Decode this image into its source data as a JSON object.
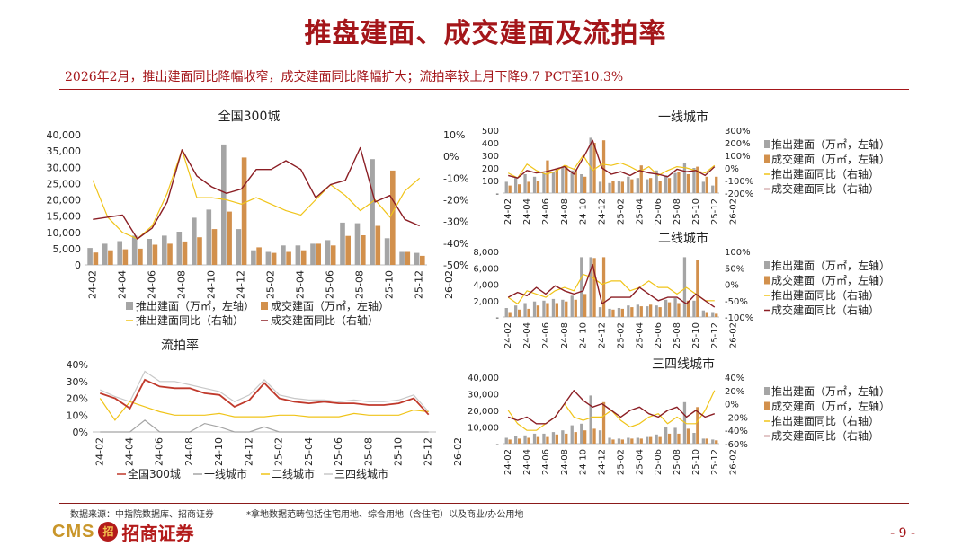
{
  "page": {
    "title": "推盘建面、成交建面及流拍率",
    "subtitle": "2026年2月，推出建面同比降幅收窄，成交建面同比降幅扩大；流拍率较上月下降9.7 PCT至10.3%",
    "footnote_source": "数据来源：中指院数据库、招商证券",
    "footnote_note": "*拿地数据范畴包括住宅用地、综合用地（含住宅）以及商业/办公用地",
    "logo_text": "CMS",
    "logo_badge": "招",
    "logo_cn": "招商证券",
    "page_number": "- 9 -"
  },
  "colors": {
    "brand_red": "#a4161a",
    "bar_supply": "#a5a5a5",
    "bar_deal": "#d2904c",
    "line_supply": "#f0c419",
    "line_deal": "#8b1e24",
    "rate_national": "#c0392b",
    "rate_tier1": "#a5a5a5",
    "rate_tier2": "#f0c419",
    "rate_tier3": "#c8c8c8"
  },
  "chart_data": [
    {
      "type": "bar+line",
      "title": "全国300城",
      "x_ticks": [
        "24-02",
        "24-04",
        "24-06",
        "24-08",
        "24-10",
        "24-12",
        "25-02",
        "25-04",
        "25-06",
        "25-08",
        "25-10",
        "25-12",
        "26-02"
      ],
      "left_axis_ticks": [
        "40,000",
        "35,000",
        "30,000",
        "25,000",
        "20,000",
        "15,000",
        "10,000",
        "5,000",
        "0"
      ],
      "right_axis_ticks": [
        "10%",
        "0%",
        "-10%",
        "-20%",
        "-30%",
        "-40%",
        "-50%"
      ],
      "ylim_left": [
        0,
        40000
      ],
      "ylim_right": [
        -50,
        10
      ],
      "legend_labels": [
        "推出建面（万㎡，左轴）",
        "成交建面（万㎡，左轴）",
        "推出建面同比（右轴）",
        "成交建面同比（右轴）"
      ],
      "series": [
        {
          "name": "推出建面（万㎡，左轴）",
          "kind": "bar",
          "axis": "left",
          "values": [
            5200,
            6500,
            7300,
            9000,
            8000,
            9000,
            10200,
            14500,
            17000,
            37000,
            11000,
            4500,
            4000,
            6000,
            6000,
            6500,
            7600,
            13000,
            12800,
            32500,
            8200,
            4000,
            3700
          ]
        },
        {
          "name": "成交建面（万㎡，左轴）",
          "kind": "bar",
          "axis": "left",
          "values": [
            3800,
            4500,
            4800,
            5000,
            6200,
            6500,
            7200,
            8500,
            11000,
            16400,
            33000,
            5400,
            3700,
            4000,
            4500,
            6500,
            6000,
            8900,
            9100,
            12000,
            29000,
            4000,
            2800
          ]
        },
        {
          "name": "推出建面同比（右轴）",
          "kind": "line",
          "axis": "right",
          "values": [
            -11,
            -28,
            -35,
            -38,
            -32,
            -17,
            3,
            -19,
            -19,
            -20,
            -22,
            -19,
            -22,
            -25,
            -27,
            -20,
            -13,
            -18,
            -25,
            -20,
            -28,
            -16,
            -10
          ]
        },
        {
          "name": "成交建面同比（右轴）",
          "kind": "line",
          "axis": "right",
          "values": [
            -29,
            -28,
            -27,
            -38,
            -33,
            -21,
            3,
            -9,
            -14,
            -17,
            -15,
            -6,
            -6,
            -2,
            -6,
            -19,
            -13,
            -11,
            4,
            -21,
            -18,
            -29,
            -32
          ]
        }
      ]
    },
    {
      "type": "bar+line",
      "title": "一线城市",
      "x_ticks": [
        "24-02",
        "24-04",
        "24-06",
        "24-08",
        "24-10",
        "24-12",
        "25-02",
        "25-04",
        "25-06",
        "25-08",
        "25-10",
        "25-12",
        "26-02"
      ],
      "left_axis_ticks": [
        "500",
        "400",
        "300",
        "200",
        "100",
        "-"
      ],
      "right_axis_ticks": [
        "300%",
        "200%",
        "100%",
        "0%",
        "-100%",
        "-200%"
      ],
      "ylim_left": [
        0,
        500
      ],
      "ylim_right": [
        -200,
        300
      ],
      "legend_labels": [
        "推出建面（万㎡，左轴）",
        "成交建面（万㎡，左轴）",
        "推出建面同比（右轴）",
        "成交建面同比（右轴）"
      ],
      "series": [
        {
          "name": "推出建面（万㎡，左轴）",
          "kind": "bar",
          "axis": "left",
          "values": [
            90,
            120,
            150,
            130,
            160,
            170,
            210,
            180,
            150,
            440,
            90,
            80,
            100,
            130,
            120,
            110,
            180,
            140,
            160,
            240,
            200,
            90,
            60
          ]
        },
        {
          "name": "成交建面（万㎡，左轴）",
          "kind": "bar",
          "axis": "left",
          "values": [
            60,
            70,
            90,
            100,
            260,
            190,
            220,
            190,
            130,
            400,
            420,
            100,
            90,
            110,
            220,
            120,
            100,
            120,
            170,
            150,
            210,
            130,
            130
          ]
        },
        {
          "name": "推出建面同比（右轴）",
          "kind": "line",
          "axis": "right",
          "values": [
            -40,
            -80,
            30,
            -20,
            -50,
            -30,
            20,
            -10,
            100,
            -20,
            30,
            20,
            40,
            10,
            -30,
            10,
            -60,
            -20,
            10,
            0,
            -20,
            -40,
            20
          ]
        },
        {
          "name": "成交建面同比（右轴）",
          "kind": "line",
          "axis": "right",
          "values": [
            -60,
            -80,
            -20,
            -40,
            -30,
            -10,
            10,
            -50,
            80,
            220,
            0,
            -50,
            -30,
            -60,
            -20,
            -40,
            -50,
            -70,
            -10,
            -30,
            -20,
            -60,
            10
          ]
        }
      ]
    },
    {
      "type": "bar+line",
      "title": "二线城市",
      "x_ticks": [
        "24-02",
        "24-04",
        "24-06",
        "24-08",
        "24-10",
        "24-12",
        "25-02",
        "25-04",
        "25-06",
        "25-08",
        "25-10",
        "25-12",
        "26-02"
      ],
      "left_axis_ticks": [
        "8,000",
        "6,000",
        "4,000",
        "2,000",
        "-"
      ],
      "right_axis_ticks": [
        "100%",
        "50%",
        "0%",
        "-50%",
        "-100%"
      ],
      "ylim_left": [
        0,
        8000
      ],
      "ylim_right": [
        -100,
        100
      ],
      "legend_labels": [
        "推出建面（万㎡，左轴）",
        "成交建面（万㎡，左轴）",
        "推出建面同比（右轴）",
        "成交建面同比（右轴）"
      ],
      "series": [
        {
          "name": "推出建面（万㎡，左轴）",
          "kind": "bar",
          "axis": "left",
          "values": [
            1100,
            1400,
            1700,
            1900,
            2000,
            2200,
            2100,
            2600,
            7300,
            7300,
            1200,
            1000,
            1100,
            1400,
            1500,
            1300,
            1400,
            2100,
            2300,
            7300,
            2000,
            800,
            600
          ]
        },
        {
          "name": "成交建面（万㎡，左轴）",
          "kind": "bar",
          "axis": "left",
          "values": [
            600,
            900,
            1000,
            1400,
            1700,
            1700,
            1900,
            2100,
            2800,
            7200,
            7300,
            900,
            1000,
            1200,
            1300,
            1500,
            1200,
            1800,
            1700,
            2000,
            6900,
            600,
            400
          ]
        },
        {
          "name": "推出建面同比（右轴）",
          "kind": "line",
          "axis": "right",
          "values": [
            -40,
            -60,
            -20,
            -30,
            -40,
            -20,
            -10,
            -20,
            30,
            20,
            0,
            10,
            10,
            -20,
            -10,
            10,
            -10,
            -10,
            -30,
            -10,
            -30,
            -50,
            -50
          ]
        },
        {
          "name": "成交建面同比（右轴）",
          "kind": "line",
          "axis": "right",
          "values": [
            -40,
            -25,
            -35,
            -10,
            -30,
            -5,
            -20,
            -30,
            -20,
            60,
            -60,
            -40,
            -40,
            -40,
            -10,
            -30,
            -50,
            -40,
            -40,
            -60,
            -30,
            -50,
            -70
          ]
        }
      ]
    },
    {
      "type": "line",
      "title": "流拍率",
      "x_ticks": [
        "24-02",
        "24-04",
        "24-06",
        "24-08",
        "24-10",
        "24-12",
        "25-02",
        "25-04",
        "25-06",
        "25-08",
        "25-10",
        "25-12",
        "26-02"
      ],
      "left_axis_ticks": [
        "40%",
        "30%",
        "20%",
        "10%",
        "0%"
      ],
      "ylim": [
        0,
        40
      ],
      "legend_labels": [
        "全国300城",
        "一线城市",
        "二线城市",
        "三四线城市"
      ],
      "series": [
        {
          "name": "全国300城",
          "values": [
            23,
            20,
            14,
            31,
            27,
            26,
            26,
            23,
            22,
            15,
            19,
            29,
            20,
            18,
            17,
            18,
            17,
            17,
            16,
            16,
            17,
            20,
            10.3
          ]
        },
        {
          "name": "一线城市",
          "values": [
            0,
            0,
            0,
            7,
            0,
            0,
            0,
            5,
            3,
            0,
            0,
            3,
            0,
            0,
            0,
            0,
            0,
            0,
            0,
            0,
            0,
            0,
            0
          ]
        },
        {
          "name": "二线城市",
          "values": [
            20,
            7,
            18,
            15,
            12,
            10,
            10,
            10,
            11,
            9,
            9,
            9,
            10,
            10,
            9,
            9,
            9,
            11,
            10,
            10,
            10,
            13,
            12
          ]
        },
        {
          "name": "三四线城市",
          "values": [
            25,
            21,
            18,
            36,
            30,
            30,
            28,
            26,
            24,
            18,
            22,
            31,
            22,
            20,
            19,
            19,
            18,
            19,
            18,
            18,
            19,
            22,
            12
          ]
        }
      ]
    },
    {
      "type": "bar+line",
      "title": "三四线城市",
      "x_ticks": [
        "24-02",
        "24-04",
        "24-06",
        "24-08",
        "24-10",
        "24-12",
        "25-02",
        "25-04",
        "25-06",
        "25-08",
        "25-10",
        "25-12",
        "26-02"
      ],
      "left_axis_ticks": [
        "40,000",
        "30,000",
        "20,000",
        "10,000",
        "-"
      ],
      "right_axis_ticks": [
        "40%",
        "20%",
        "0%",
        "-20%",
        "-40%",
        "-60%"
      ],
      "ylim_left": [
        0,
        40000
      ],
      "ylim_right": [
        -60,
        40
      ],
      "legend_labels": [
        "推出建面（万㎡，左轴）",
        "成交建面（万㎡，左轴）",
        "推出建面同比（右轴）",
        "成交建面同比（右轴）"
      ],
      "series": [
        {
          "name": "推出建面（万㎡，左轴）",
          "kind": "bar",
          "axis": "left",
          "values": [
            3500,
            4500,
            5000,
            6000,
            6000,
            7000,
            8000,
            11000,
            12000,
            29000,
            8000,
            3500,
            3000,
            3500,
            3500,
            4000,
            5500,
            10000,
            9500,
            25000,
            6500,
            3000,
            2500
          ]
        },
        {
          "name": "成交建面（万㎡，左轴）",
          "kind": "bar",
          "axis": "left",
          "values": [
            2500,
            3000,
            3500,
            4000,
            4000,
            5500,
            6000,
            7000,
            8000,
            9000,
            25000,
            2500,
            2500,
            3000,
            3000,
            4000,
            4000,
            6000,
            6000,
            9000,
            22000,
            3000,
            2000
          ]
        },
        {
          "name": "推出建面同比（右轴）",
          "kind": "line",
          "axis": "right",
          "values": [
            -10,
            -30,
            -40,
            -40,
            -30,
            -20,
            0,
            -20,
            -25,
            -20,
            -20,
            -10,
            -25,
            -35,
            -30,
            -20,
            -15,
            -30,
            -20,
            -30,
            -30,
            -10,
            20
          ]
        },
        {
          "name": "成交建面同比（右轴）",
          "kind": "line",
          "axis": "right",
          "values": [
            -20,
            -25,
            -20,
            -30,
            -30,
            -20,
            0,
            20,
            5,
            -5,
            0,
            -10,
            -20,
            -10,
            -5,
            -15,
            -20,
            -10,
            -5,
            -20,
            -10,
            -20,
            -15
          ]
        }
      ]
    }
  ]
}
